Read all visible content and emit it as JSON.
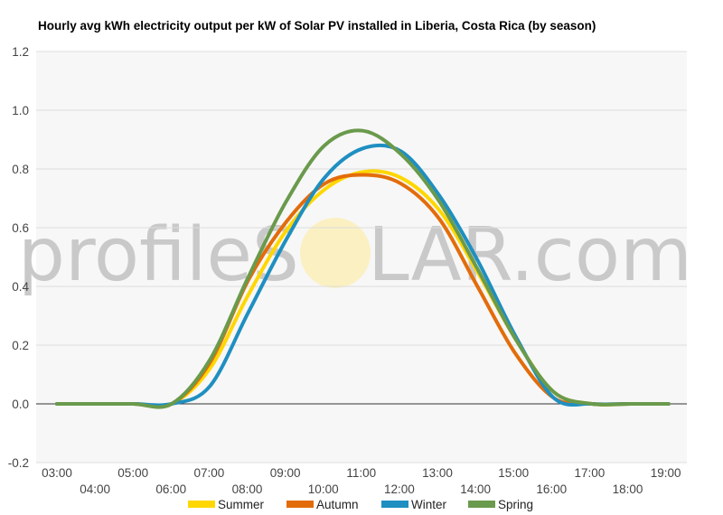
{
  "chart_data": {
    "type": "line",
    "title": "Hourly avg kWh electricity output per kW of Solar PV installed in Liberia, Costa Rica (by season)",
    "xlabel": "",
    "ylabel": "",
    "ylim": [
      -0.2,
      1.2
    ],
    "yticks": [
      "-0.2",
      "0.0",
      "0.2",
      "0.4",
      "0.6",
      "0.8",
      "1.0",
      "1.2"
    ],
    "x_tick_labels": [
      "03:00",
      "04:00",
      "05:00",
      "06:00",
      "07:00",
      "08:00",
      "09:00",
      "10:00",
      "11:00",
      "12:00",
      "13:00",
      "14:00",
      "15:00",
      "16:00",
      "17:00",
      "18:00",
      "19:00"
    ],
    "grid": true,
    "legend_position": "bottom",
    "watermark": {
      "left": "profileS",
      "right": "LAR.com"
    },
    "series": [
      {
        "name": "Summer",
        "color": "#FFD700",
        "values": [
          0.0,
          0.0,
          0.0,
          0.12,
          0.37,
          0.59,
          0.73,
          0.79,
          0.77,
          0.66,
          0.45,
          0.22,
          0.04,
          0.0,
          0.0
        ]
      },
      {
        "name": "Autumn",
        "color": "#E36C0A",
        "values": [
          0.0,
          0.0,
          0.0,
          0.14,
          0.42,
          0.62,
          0.75,
          0.78,
          0.75,
          0.63,
          0.4,
          0.17,
          0.02,
          0.0,
          0.0
        ]
      },
      {
        "name": "Winter",
        "color": "#1F8FC1",
        "values": [
          0.0,
          0.0,
          0.0,
          0.06,
          0.31,
          0.56,
          0.77,
          0.87,
          0.86,
          0.71,
          0.49,
          0.23,
          0.02,
          0.0,
          0.0
        ]
      },
      {
        "name": "Spring",
        "color": "#6A9A4C",
        "values": [
          0.0,
          0.0,
          0.0,
          0.15,
          0.43,
          0.69,
          0.88,
          0.93,
          0.85,
          0.69,
          0.46,
          0.22,
          0.04,
          0.0,
          0.0
        ]
      }
    ]
  }
}
